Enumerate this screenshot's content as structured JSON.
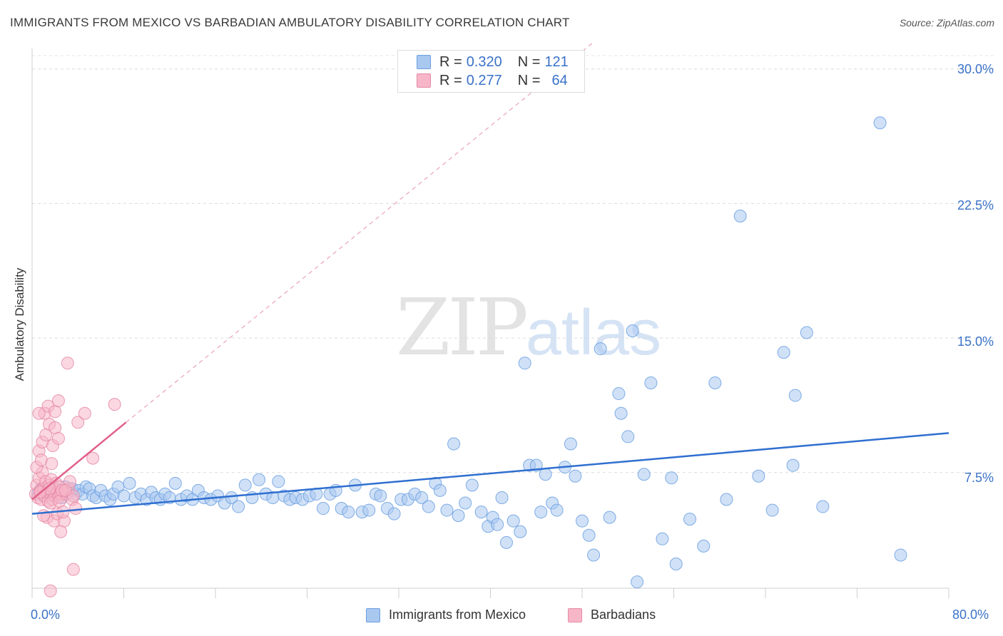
{
  "title": "IMMIGRANTS FROM MEXICO VS BARBADIAN AMBULATORY DISABILITY CORRELATION CHART",
  "source": "Source: ZipAtlas.com",
  "watermark": {
    "zip": "ZIP",
    "atlas": "atlas"
  },
  "legend": {
    "series1": {
      "r_label": "R = ",
      "r_value": "0.320",
      "n_label": "N = ",
      "n_value": "121",
      "color": "#a9c8f0"
    },
    "series2": {
      "r_label": "R = ",
      "r_value": "0.277",
      "n_label": "N = ",
      "n_value": "64",
      "color": "#f7b6c8"
    }
  },
  "bottom_legend": {
    "series1": "Immigrants from Mexico",
    "series2": "Barbadians"
  },
  "axes": {
    "ylabel": "Ambulatory Disability",
    "yticks": [
      "30.0%",
      "22.5%",
      "15.0%",
      "7.5%"
    ],
    "x_min_label": "0.0%",
    "x_max_label": "80.0%"
  },
  "chart_data": {
    "type": "scatter",
    "title": "IMMIGRANTS FROM MEXICO VS BARBADIAN AMBULATORY DISABILITY CORRELATION CHART",
    "xlabel": "",
    "ylabel": "Ambulatory Disability",
    "xlim": [
      0,
      80
    ],
    "ylim": [
      0,
      31
    ],
    "grid": true,
    "legend_position": "top-center",
    "series": [
      {
        "name": "Immigrants from Mexico",
        "color": "#a9c8f0",
        "stroke": "#6b9fe0",
        "trend": {
          "x0": 0,
          "y0": 5.2,
          "x1": 80,
          "y1": 9.7,
          "color": "#2f6fd0",
          "style": "solid"
        },
        "points": [
          [
            0.5,
            6.3
          ],
          [
            0.8,
            6.6
          ],
          [
            1.0,
            6.2
          ],
          [
            1.2,
            6.4
          ],
          [
            1.5,
            6.5
          ],
          [
            1.8,
            6.2
          ],
          [
            2.0,
            6.6
          ],
          [
            2.3,
            6.4
          ],
          [
            2.6,
            6.1
          ],
          [
            2.9,
            6.7
          ],
          [
            3.2,
            6.4
          ],
          [
            3.5,
            6.6
          ],
          [
            3.8,
            6.3
          ],
          [
            4.1,
            6.5
          ],
          [
            4.4,
            6.3
          ],
          [
            4.7,
            6.7
          ],
          [
            5.0,
            6.6
          ],
          [
            5.3,
            6.2
          ],
          [
            5.6,
            6.1
          ],
          [
            6.0,
            6.5
          ],
          [
            6.4,
            6.2
          ],
          [
            6.8,
            6.0
          ],
          [
            7.1,
            6.3
          ],
          [
            7.5,
            6.7
          ],
          [
            8.0,
            6.2
          ],
          [
            8.5,
            6.9
          ],
          [
            9.0,
            6.1
          ],
          [
            9.5,
            6.3
          ],
          [
            10.0,
            6.0
          ],
          [
            10.4,
            6.4
          ],
          [
            10.8,
            6.1
          ],
          [
            11.2,
            6.0
          ],
          [
            11.6,
            6.3
          ],
          [
            12.0,
            6.1
          ],
          [
            12.5,
            6.9
          ],
          [
            13.0,
            6.0
          ],
          [
            13.5,
            6.2
          ],
          [
            14.0,
            6.0
          ],
          [
            14.5,
            6.5
          ],
          [
            15.0,
            6.1
          ],
          [
            15.6,
            6.0
          ],
          [
            16.2,
            6.2
          ],
          [
            16.8,
            5.8
          ],
          [
            17.4,
            6.1
          ],
          [
            18.0,
            5.6
          ],
          [
            18.6,
            6.8
          ],
          [
            19.2,
            6.1
          ],
          [
            19.8,
            7.1
          ],
          [
            20.4,
            6.3
          ],
          [
            21.0,
            6.1
          ],
          [
            21.5,
            7.0
          ],
          [
            22.0,
            6.2
          ],
          [
            22.5,
            6.0
          ],
          [
            23.0,
            6.1
          ],
          [
            23.6,
            6.0
          ],
          [
            24.2,
            6.2
          ],
          [
            24.8,
            6.3
          ],
          [
            25.4,
            5.5
          ],
          [
            26.0,
            6.3
          ],
          [
            26.5,
            6.5
          ],
          [
            27.0,
            5.5
          ],
          [
            27.6,
            5.3
          ],
          [
            28.2,
            6.8
          ],
          [
            28.8,
            5.3
          ],
          [
            29.4,
            5.4
          ],
          [
            30.0,
            6.3
          ],
          [
            30.4,
            6.2
          ],
          [
            31.0,
            5.5
          ],
          [
            31.6,
            5.2
          ],
          [
            32.2,
            6.0
          ],
          [
            32.8,
            6.0
          ],
          [
            33.4,
            6.3
          ],
          [
            34.0,
            6.1
          ],
          [
            34.6,
            5.6
          ],
          [
            35.2,
            6.9
          ],
          [
            35.6,
            6.5
          ],
          [
            36.2,
            5.4
          ],
          [
            36.8,
            9.1
          ],
          [
            37.2,
            5.1
          ],
          [
            37.8,
            5.8
          ],
          [
            38.4,
            6.8
          ],
          [
            39.2,
            5.3
          ],
          [
            39.8,
            4.5
          ],
          [
            40.2,
            5.0
          ],
          [
            40.6,
            4.6
          ],
          [
            41.0,
            6.1
          ],
          [
            41.4,
            3.6
          ],
          [
            42.0,
            4.8
          ],
          [
            42.6,
            4.2
          ],
          [
            43.0,
            13.6
          ],
          [
            43.4,
            7.9
          ],
          [
            44.0,
            7.9
          ],
          [
            44.4,
            5.3
          ],
          [
            44.8,
            7.4
          ],
          [
            45.4,
            5.8
          ],
          [
            45.8,
            5.4
          ],
          [
            46.5,
            7.8
          ],
          [
            47.0,
            9.1
          ],
          [
            47.4,
            7.3
          ],
          [
            48.0,
            4.8
          ],
          [
            48.6,
            4.0
          ],
          [
            49.0,
            2.9
          ],
          [
            49.6,
            14.4
          ],
          [
            50.4,
            5.0
          ],
          [
            51.2,
            11.9
          ],
          [
            51.4,
            10.8
          ],
          [
            52.0,
            9.5
          ],
          [
            52.4,
            15.4
          ],
          [
            52.8,
            1.4
          ],
          [
            53.4,
            7.4
          ],
          [
            54.0,
            12.5
          ],
          [
            55.0,
            3.8
          ],
          [
            55.8,
            7.2
          ],
          [
            56.2,
            2.4
          ],
          [
            57.4,
            4.9
          ],
          [
            58.6,
            3.4
          ],
          [
            59.6,
            12.5
          ],
          [
            60.6,
            6.0
          ],
          [
            61.8,
            21.8
          ],
          [
            63.4,
            7.3
          ],
          [
            64.6,
            5.4
          ],
          [
            65.6,
            14.2
          ],
          [
            66.4,
            7.9
          ],
          [
            66.6,
            11.8
          ],
          [
            67.6,
            15.3
          ],
          [
            69.0,
            5.6
          ],
          [
            74.0,
            27.0
          ],
          [
            75.8,
            2.9
          ]
        ]
      },
      {
        "name": "Barbadians",
        "color": "#f7b6c8",
        "stroke": "#e58aa6",
        "trend": {
          "x0": 0,
          "y0": 6.0,
          "x1": 8.2,
          "y1": 10.3,
          "color": "#e0608a",
          "style": "solid",
          "ext_x1": 49.0,
          "ext_y1": 31.5,
          "ext_style": "dashed"
        },
        "points": [
          [
            0.3,
            6.3
          ],
          [
            0.4,
            6.8
          ],
          [
            0.5,
            6.1
          ],
          [
            0.6,
            7.2
          ],
          [
            0.7,
            6.5
          ],
          [
            0.8,
            6.0
          ],
          [
            0.9,
            7.5
          ],
          [
            1.0,
            6.6
          ],
          [
            1.1,
            6.2
          ],
          [
            1.2,
            7.0
          ],
          [
            1.3,
            6.4
          ],
          [
            1.4,
            5.9
          ],
          [
            1.5,
            6.8
          ],
          [
            1.6,
            6.3
          ],
          [
            1.7,
            7.1
          ],
          [
            1.8,
            6.0
          ],
          [
            1.9,
            6.6
          ],
          [
            2.0,
            6.2
          ],
          [
            2.1,
            6.9
          ],
          [
            2.2,
            6.4
          ],
          [
            2.3,
            6.1
          ],
          [
            2.4,
            6.7
          ],
          [
            2.5,
            6.3
          ],
          [
            0.4,
            7.8
          ],
          [
            0.6,
            8.7
          ],
          [
            0.9,
            9.2
          ],
          [
            1.2,
            9.6
          ],
          [
            1.5,
            10.2
          ],
          [
            1.8,
            9.0
          ],
          [
            2.0,
            10.0
          ],
          [
            2.3,
            9.4
          ],
          [
            0.8,
            8.2
          ],
          [
            1.1,
            10.8
          ],
          [
            1.4,
            11.2
          ],
          [
            1.7,
            8.0
          ],
          [
            2.0,
            10.9
          ],
          [
            2.3,
            11.5
          ],
          [
            0.6,
            10.8
          ],
          [
            1.3,
            5.0
          ],
          [
            1.9,
            4.8
          ],
          [
            2.2,
            5.2
          ],
          [
            2.5,
            4.2
          ],
          [
            1.0,
            5.1
          ],
          [
            1.6,
            5.8
          ],
          [
            2.4,
            5.9
          ],
          [
            3.0,
            6.3
          ],
          [
            3.2,
            6.6
          ],
          [
            3.5,
            6.0
          ],
          [
            3.8,
            5.5
          ],
          [
            2.8,
            4.8
          ],
          [
            4.0,
            10.3
          ],
          [
            4.6,
            10.8
          ],
          [
            3.1,
            13.6
          ],
          [
            5.3,
            8.3
          ],
          [
            7.2,
            11.3
          ],
          [
            2.7,
            5.3
          ],
          [
            2.6,
            6.5
          ],
          [
            1.5,
            6.6
          ],
          [
            0.7,
            6.4
          ],
          [
            3.3,
            7.0
          ],
          [
            3.6,
            6.2
          ],
          [
            2.9,
            6.5
          ],
          [
            1.6,
            0.9
          ],
          [
            3.6,
            2.1
          ]
        ]
      }
    ]
  }
}
